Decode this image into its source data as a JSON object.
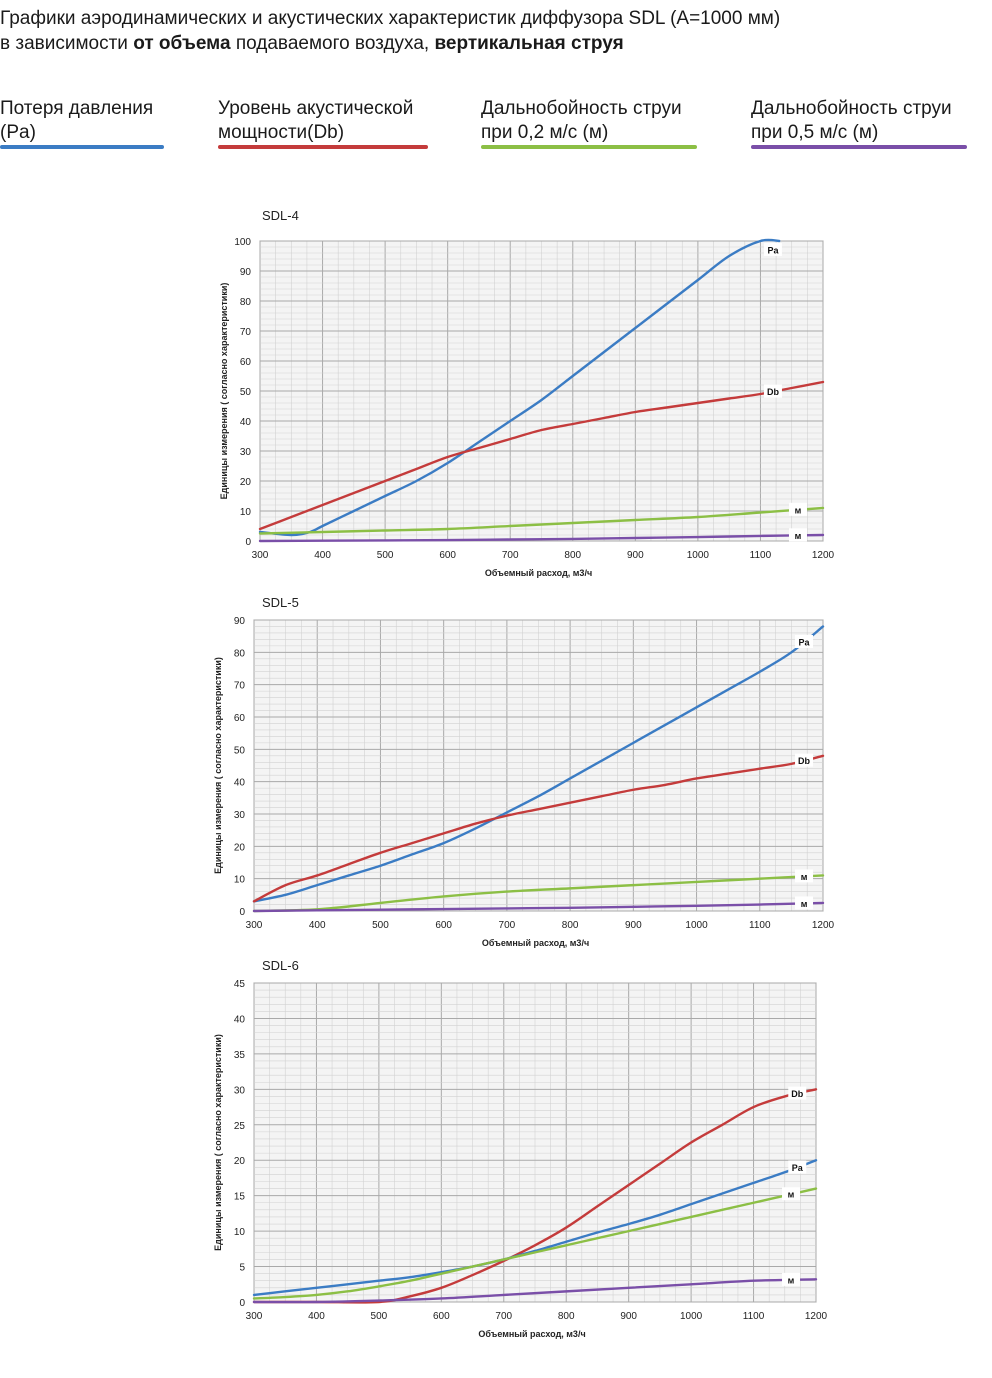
{
  "header": {
    "line1": "Графики аэродинамических и акустических характеристик  диффузора SDL (А=1000 мм)",
    "line2_pre": "в зависимости ",
    "line2_b1": "от объема",
    "line2_mid": " подаваемого воздуха, ",
    "line2_b2": "вертикальная струя"
  },
  "legend": [
    {
      "line1": "Потеря давления",
      "line2": "(Pa)",
      "color": "#3b7cc4"
    },
    {
      "line1": "Уровень акустической",
      "line2": "мощности(Db)",
      "color": "#c43b3b"
    },
    {
      "line1": "Дальнобойность струи",
      "line2": "при 0,2 м/с (м)",
      "color": "#8cbf45"
    },
    {
      "line1": "Дальнобойность струи",
      "line2": "при 0,5 м/с (м)",
      "color": "#7a4fa8"
    }
  ],
  "chart_data": [
    {
      "type": "line",
      "title": "SDL-4",
      "xlabel": "Объемный расход, м3/ч",
      "ylabel": "Единицы измерения ( согласно характеристики)",
      "xlim": [
        300,
        1200
      ],
      "ylim": [
        0,
        100
      ],
      "xticks": [
        300,
        400,
        500,
        600,
        700,
        800,
        900,
        1000,
        1100,
        1200
      ],
      "yticks": [
        0,
        10,
        20,
        30,
        40,
        50,
        60,
        70,
        80,
        90,
        100
      ],
      "grid": true,
      "series": [
        {
          "name": "Pa",
          "color": "#3b7cc4",
          "x": [
            300,
            350,
            380,
            400,
            450,
            500,
            550,
            600,
            650,
            700,
            750,
            800,
            850,
            900,
            950,
            1000,
            1050,
            1100,
            1130
          ],
          "y": [
            3,
            2,
            3,
            5,
            10,
            15,
            20,
            26,
            33,
            40,
            47,
            55,
            63,
            71,
            79,
            87,
            95,
            100,
            100
          ]
        },
        {
          "name": "Db",
          "color": "#c43b3b",
          "x": [
            300,
            350,
            400,
            450,
            500,
            550,
            600,
            650,
            700,
            750,
            800,
            850,
            900,
            950,
            1000,
            1050,
            1100,
            1150,
            1200
          ],
          "y": [
            4,
            8,
            12,
            16,
            20,
            24,
            28,
            31,
            34,
            37,
            39,
            41,
            43,
            44.5,
            46,
            47.5,
            49,
            51,
            53
          ]
        },
        {
          "name": "м",
          "color": "#8cbf45",
          "x": [
            300,
            400,
            500,
            600,
            700,
            800,
            900,
            1000,
            1100,
            1200
          ],
          "y": [
            2.5,
            3,
            3.5,
            4,
            5,
            6,
            7,
            8,
            9.5,
            11
          ]
        },
        {
          "name": "м",
          "color": "#7a4fa8",
          "x": [
            300,
            400,
            500,
            600,
            700,
            800,
            900,
            1000,
            1100,
            1200
          ],
          "y": [
            0,
            0.1,
            0.2,
            0.3,
            0.5,
            0.7,
            1.0,
            1.3,
            1.7,
            2.0
          ]
        }
      ]
    },
    {
      "type": "line",
      "title": "SDL-5",
      "xlabel": "Объемный расход, м3/ч",
      "ylabel": "Единицы измерения ( согласно характеристики)",
      "xlim": [
        300,
        1200
      ],
      "ylim": [
        0,
        90
      ],
      "xticks": [
        300,
        400,
        500,
        600,
        700,
        800,
        900,
        1000,
        1100,
        1200
      ],
      "yticks": [
        0,
        10,
        20,
        30,
        40,
        50,
        60,
        70,
        80,
        90
      ],
      "grid": true,
      "series": [
        {
          "name": "Pa",
          "color": "#3b7cc4",
          "x": [
            300,
            350,
            400,
            450,
            500,
            550,
            600,
            650,
            700,
            750,
            800,
            850,
            900,
            950,
            1000,
            1050,
            1100,
            1150,
            1200
          ],
          "y": [
            3,
            5,
            8,
            11,
            14,
            17.5,
            21,
            25.5,
            30.5,
            35.5,
            41,
            46.5,
            52,
            57.5,
            63,
            68.5,
            74,
            80,
            88
          ]
        },
        {
          "name": "Db",
          "color": "#c43b3b",
          "x": [
            300,
            350,
            400,
            450,
            500,
            550,
            600,
            650,
            700,
            750,
            800,
            850,
            900,
            950,
            1000,
            1050,
            1100,
            1150,
            1200
          ],
          "y": [
            3,
            8,
            11,
            14.5,
            18,
            21,
            24,
            27,
            29.5,
            31.5,
            33.5,
            35.5,
            37.5,
            39,
            41,
            42.5,
            44,
            45.5,
            48
          ]
        },
        {
          "name": "м",
          "color": "#8cbf45",
          "x": [
            300,
            400,
            500,
            600,
            700,
            800,
            900,
            1000,
            1100,
            1200
          ],
          "y": [
            0,
            0.5,
            2.5,
            4.5,
            6,
            7,
            8,
            9,
            10,
            11
          ]
        },
        {
          "name": "м",
          "color": "#7a4fa8",
          "x": [
            300,
            400,
            500,
            600,
            700,
            800,
            900,
            1000,
            1100,
            1200
          ],
          "y": [
            0,
            0.2,
            0.4,
            0.6,
            0.8,
            1.0,
            1.3,
            1.6,
            2.0,
            2.5
          ]
        }
      ]
    },
    {
      "type": "line",
      "title": "SDL-6",
      "xlabel": "Объемный расход, м3/ч",
      "ylabel": "Единицы измерения ( согласно характеристики)",
      "xlim": [
        300,
        1200
      ],
      "ylim": [
        0,
        45
      ],
      "xticks": [
        300,
        400,
        500,
        600,
        700,
        800,
        900,
        1000,
        1100,
        1200
      ],
      "yticks": [
        0,
        5,
        10,
        15,
        20,
        25,
        30,
        35,
        40,
        45
      ],
      "grid": true,
      "series": [
        {
          "name": "Db",
          "color": "#c43b3b",
          "x": [
            300,
            400,
            500,
            550,
            600,
            650,
            700,
            750,
            800,
            850,
            900,
            950,
            1000,
            1050,
            1100,
            1150,
            1200
          ],
          "y": [
            0,
            0,
            0,
            0.8,
            2,
            3.8,
            5.8,
            8,
            10.5,
            13.5,
            16.5,
            19.5,
            22.5,
            25,
            27.5,
            29,
            30
          ]
        },
        {
          "name": "Pa",
          "color": "#3b7cc4",
          "x": [
            300,
            350,
            400,
            450,
            500,
            550,
            600,
            650,
            700,
            750,
            800,
            850,
            900,
            950,
            1000,
            1050,
            1100,
            1150,
            1200
          ],
          "y": [
            1,
            1.5,
            2,
            2.5,
            3,
            3.5,
            4.2,
            5,
            6,
            7.2,
            8.5,
            9.8,
            11,
            12.3,
            13.8,
            15.3,
            16.8,
            18.3,
            20
          ]
        },
        {
          "name": "м",
          "color": "#8cbf45",
          "x": [
            300,
            350,
            400,
            450,
            500,
            550,
            600,
            650,
            700,
            750,
            800,
            850,
            900,
            950,
            1000,
            1050,
            1100,
            1150,
            1200
          ],
          "y": [
            0.5,
            0.7,
            1,
            1.5,
            2.2,
            3,
            4,
            5,
            6,
            7,
            8,
            9,
            10,
            11,
            12,
            13,
            14,
            15,
            16
          ]
        },
        {
          "name": "м",
          "color": "#7a4fa8",
          "x": [
            300,
            400,
            500,
            600,
            700,
            800,
            900,
            1000,
            1100,
            1200
          ],
          "y": [
            0,
            0,
            0.2,
            0.5,
            1,
            1.5,
            2,
            2.5,
            3,
            3.2
          ]
        }
      ]
    }
  ]
}
